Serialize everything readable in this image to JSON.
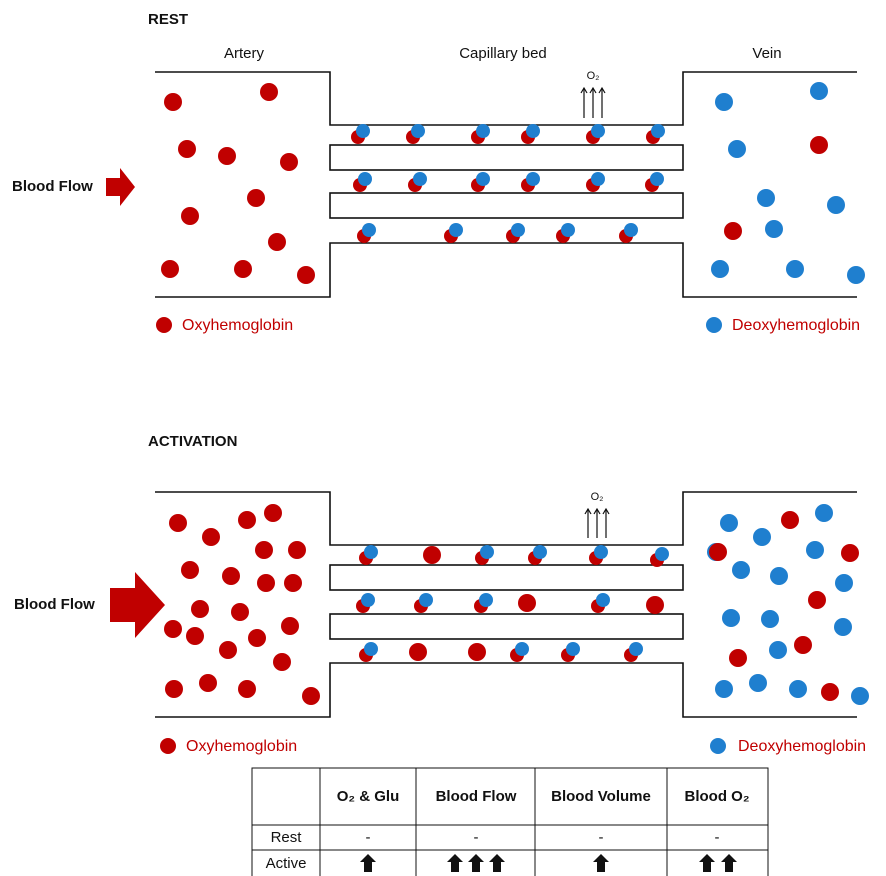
{
  "rest": {
    "title": "REST",
    "artery": "Artery",
    "capillary": "Capillary bed",
    "vein": "Vein",
    "oxygen": "O₂",
    "flow": "Blood Flow",
    "oxy_legend": "Oxyhemoglobin",
    "deoxy_legend": "Deoxyhemoglobin"
  },
  "activation": {
    "title": "ACTIVATION",
    "oxygen": "O₂",
    "flow": "Blood Flow",
    "oxy_legend": "Oxyhemoglobin",
    "deoxy_legend": "Deoxyhemoglobin"
  },
  "table": {
    "header": [
      "O₂ & Glu",
      "Blood Flow",
      "Blood Volume",
      "Blood O₂"
    ],
    "rows": [
      {
        "label": "Rest",
        "cells": [
          "-",
          "-",
          "-",
          "-"
        ]
      },
      {
        "label": "Active"
      }
    ]
  }
}
